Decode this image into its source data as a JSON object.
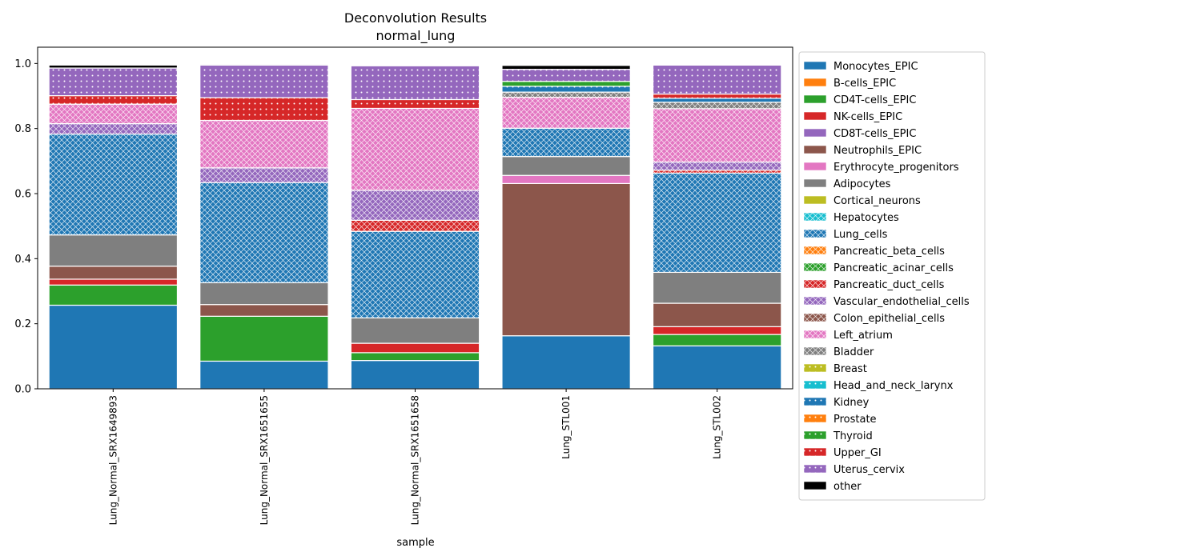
{
  "chart_data": {
    "type": "bar",
    "stacked": true,
    "title": "Deconvolution Results",
    "subtitle": "normal_lung",
    "xlabel": "sample",
    "ylabel": "",
    "ylim": [
      0,
      1.05
    ],
    "yticks": [
      "0.0",
      "0.2",
      "0.4",
      "0.6",
      "0.8",
      "1.0"
    ],
    "grid": false,
    "legend_position": "outside-right",
    "categories": [
      "Lung_Normal_SRX1649893",
      "Lung_Normal_SRX1651655",
      "Lung_Normal_SRX1651658",
      "Lung_STL001",
      "Lung_STL002"
    ],
    "series": [
      {
        "name": "Monocytes_EPIC",
        "color": "#1f77b4",
        "pattern": "solid",
        "values": [
          0.257,
          0.085,
          0.087,
          0.163,
          0.132
        ]
      },
      {
        "name": "B-cells_EPIC",
        "color": "#ff7f0e",
        "pattern": "solid",
        "values": [
          0,
          0,
          0,
          0,
          0
        ]
      },
      {
        "name": "CD4T-cells_EPIC",
        "color": "#2ca02c",
        "pattern": "solid",
        "values": [
          0.062,
          0.138,
          0.024,
          0,
          0.035
        ]
      },
      {
        "name": "NK-cells_EPIC",
        "color": "#d62728",
        "pattern": "solid",
        "values": [
          0.018,
          0,
          0.029,
          0,
          0.024
        ]
      },
      {
        "name": "CD8T-cells_EPIC",
        "color": "#9467bd",
        "pattern": "solid",
        "values": [
          0,
          0,
          0,
          0,
          0
        ]
      },
      {
        "name": "Neutrophils_EPIC",
        "color": "#8c564b",
        "pattern": "solid",
        "values": [
          0.04,
          0.036,
          0,
          0.468,
          0.072
        ]
      },
      {
        "name": "Erythrocyte_progenitors",
        "color": "#e377c2",
        "pattern": "solid",
        "values": [
          0,
          0,
          0,
          0.025,
          0
        ]
      },
      {
        "name": "Adipocytes",
        "color": "#7f7f7f",
        "pattern": "solid",
        "values": [
          0.096,
          0.067,
          0.078,
          0.058,
          0.095
        ]
      },
      {
        "name": "Cortical_neurons",
        "color": "#bcbd22",
        "pattern": "solid",
        "values": [
          0,
          0,
          0,
          0,
          0
        ]
      },
      {
        "name": "Hepatocytes",
        "color": "#17becf",
        "pattern": "cross",
        "values": [
          0,
          0,
          0,
          0,
          0
        ]
      },
      {
        "name": "Lung_cells",
        "color": "#1f77b4",
        "pattern": "cross",
        "values": [
          0.31,
          0.308,
          0.266,
          0.087,
          0.305
        ]
      },
      {
        "name": "Pancreatic_beta_cells",
        "color": "#ff7f0e",
        "pattern": "cross",
        "values": [
          0,
          0,
          0,
          0,
          0
        ]
      },
      {
        "name": "Pancreatic_acinar_cells",
        "color": "#2ca02c",
        "pattern": "cross",
        "values": [
          0,
          0,
          0,
          0,
          0
        ]
      },
      {
        "name": "Pancreatic_duct_cells",
        "color": "#d62728",
        "pattern": "cross",
        "values": [
          0,
          0,
          0.034,
          0,
          0.009
        ]
      },
      {
        "name": "Vascular_endothelial_cells",
        "color": "#9467bd",
        "pattern": "cross",
        "values": [
          0.032,
          0.045,
          0.092,
          0,
          0.025
        ]
      },
      {
        "name": "Colon_epithelial_cells",
        "color": "#8c564b",
        "pattern": "cross",
        "values": [
          0,
          0,
          0,
          0,
          0
        ]
      },
      {
        "name": "Left_atrium",
        "color": "#e377c2",
        "pattern": "cross",
        "values": [
          0.06,
          0.146,
          0.252,
          0.095,
          0.164
        ]
      },
      {
        "name": "Bladder",
        "color": "#7f7f7f",
        "pattern": "cross",
        "values": [
          0,
          0,
          0,
          0.016,
          0.02
        ]
      },
      {
        "name": "Breast",
        "color": "#bcbd22",
        "pattern": "dots",
        "values": [
          0,
          0,
          0,
          0,
          0
        ]
      },
      {
        "name": "Head_and_neck_larynx",
        "color": "#17becf",
        "pattern": "dots",
        "values": [
          0,
          0,
          0,
          0,
          0
        ]
      },
      {
        "name": "Kidney",
        "color": "#1f77b4",
        "pattern": "dots",
        "values": [
          0,
          0,
          0,
          0.018,
          0.012
        ]
      },
      {
        "name": "Prostate",
        "color": "#ff7f0e",
        "pattern": "dots",
        "values": [
          0,
          0,
          0,
          0,
          0
        ]
      },
      {
        "name": "Thyroid",
        "color": "#2ca02c",
        "pattern": "dots",
        "values": [
          0,
          0,
          0,
          0.015,
          0
        ]
      },
      {
        "name": "Upper_GI",
        "color": "#d62728",
        "pattern": "dots",
        "values": [
          0.026,
          0.07,
          0.027,
          0,
          0.013
        ]
      },
      {
        "name": "Uterus_cervix",
        "color": "#9467bd",
        "pattern": "dots",
        "values": [
          0.085,
          0.1,
          0.104,
          0.037,
          0.089
        ]
      },
      {
        "name": "other",
        "color": "#000000",
        "pattern": "solid",
        "values": [
          0.009,
          0.003,
          0.002,
          0.012,
          0.002
        ]
      }
    ]
  }
}
